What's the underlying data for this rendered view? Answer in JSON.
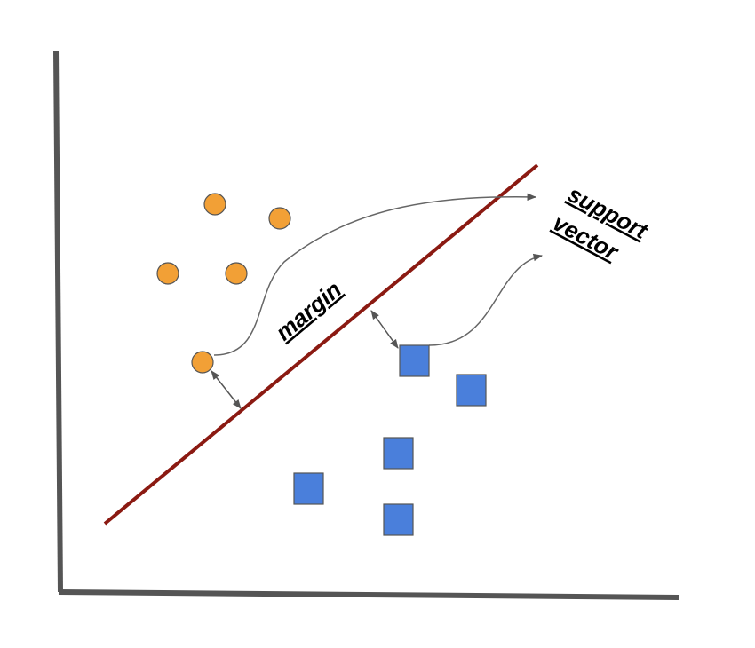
{
  "labels": {
    "margin": "margin",
    "support_line1": "support",
    "support_line2": "vector"
  },
  "colors": {
    "background": "#ffffff",
    "axes": "#555555",
    "hyperplane": "#8b1a12",
    "class_a_fill": "#f2a036",
    "class_b_fill": "#4a7fdb",
    "marker_stroke": "#555555",
    "annotation": "#666666"
  },
  "shapes": {
    "class_a": "circle",
    "class_b": "square"
  },
  "icons": {
    "margin_arrow": "double-headed-arrow",
    "pointer": "curved-arrow"
  }
}
